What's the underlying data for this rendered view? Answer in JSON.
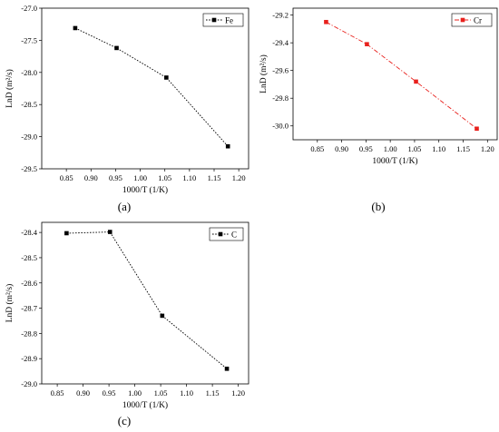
{
  "chart_data": [
    {
      "type": "line",
      "panel_label": "(a)",
      "xlabel": "1000/T (1/K)",
      "ylabel": "LnD (m²/s)",
      "xlim": [
        0.8,
        1.22
      ],
      "ylim": [
        -29.5,
        -27.0
      ],
      "xticks": [
        0.85,
        0.9,
        0.95,
        1.0,
        1.05,
        1.1,
        1.15,
        1.2
      ],
      "xtick_labels": [
        "0.85",
        "0.90",
        "0.95",
        "1.00",
        "1.05",
        "1.10",
        "1.15",
        "1.20"
      ],
      "yticks": [
        -27.0,
        -27.5,
        -28.0,
        -28.5,
        -29.0,
        -29.5
      ],
      "ytick_labels": [
        "-27.0",
        "-27.5",
        "-28.0",
        "-28.5",
        "-29.0",
        "-29.5"
      ],
      "grid": false,
      "legend_position": "top-right",
      "series": [
        {
          "name": "Fe",
          "color": "#000000",
          "line_style": "dotted",
          "marker": "square",
          "x": [
            0.868,
            0.952,
            1.053,
            1.178
          ],
          "y": [
            -27.31,
            -27.62,
            -28.08,
            -29.15
          ]
        }
      ]
    },
    {
      "type": "line",
      "panel_label": "(b)",
      "xlabel": "1000/T (1/K)",
      "ylabel": "LnD (m²/s)",
      "xlim": [
        0.8,
        1.22
      ],
      "ylim": [
        -30.1,
        -29.15
      ],
      "xticks": [
        0.85,
        0.9,
        0.95,
        1.0,
        1.05,
        1.1,
        1.15,
        1.2
      ],
      "xtick_labels": [
        "0.85",
        "0.90",
        "0.95",
        "1.00",
        "1.05",
        "1.10",
        "1.15",
        "1.20"
      ],
      "yticks": [
        -29.2,
        -29.4,
        -29.6,
        -29.8,
        -30.0
      ],
      "ytick_labels": [
        "-29.2",
        "-29.4",
        "-29.6",
        "-29.8",
        "-30.0"
      ],
      "grid": false,
      "legend_position": "top-right",
      "series": [
        {
          "name": "Cr",
          "color": "#e8201c",
          "line_style": "dash-dot",
          "marker": "square",
          "x": [
            0.868,
            0.952,
            1.053,
            1.178
          ],
          "y": [
            -29.25,
            -29.41,
            -29.68,
            -30.02
          ]
        }
      ]
    },
    {
      "type": "line",
      "panel_label": "(c)",
      "xlabel": "1000/T (1/K)",
      "ylabel": "LnD (m²/s)",
      "xlim": [
        0.82,
        1.22
      ],
      "ylim": [
        -29.0,
        -28.36
      ],
      "xticks": [
        0.85,
        0.9,
        0.95,
        1.0,
        1.05,
        1.1,
        1.15,
        1.2
      ],
      "xtick_labels": [
        "0.85",
        "0.90",
        "0.95",
        "1.00",
        "1.05",
        "1.10",
        "1.15",
        "1.20"
      ],
      "yticks": [
        -28.4,
        -28.5,
        -28.6,
        -28.7,
        -28.8,
        -28.9,
        -29.0
      ],
      "ytick_labels": [
        "-28.4",
        "-28.5",
        "-28.6",
        "-28.7",
        "-28.8",
        "-28.9",
        "-29.0"
      ],
      "grid": false,
      "legend_position": "top-right",
      "series": [
        {
          "name": "C",
          "color": "#000000",
          "line_style": "dotted",
          "marker": "square",
          "x": [
            0.868,
            0.952,
            1.053,
            1.178
          ],
          "y": [
            -28.403,
            -28.398,
            -28.73,
            -28.94
          ]
        }
      ]
    }
  ]
}
